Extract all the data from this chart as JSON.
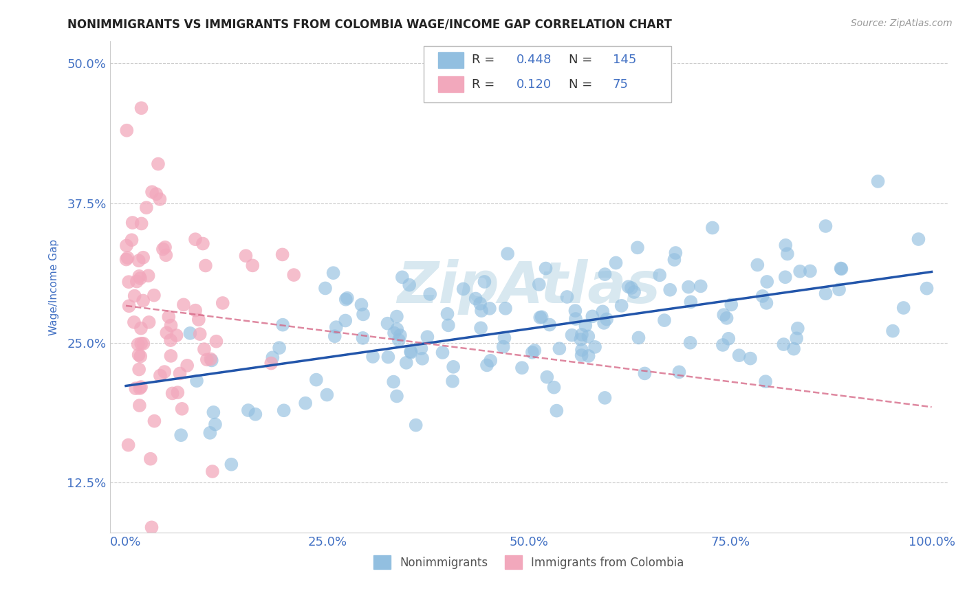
{
  "title": "NONIMMIGRANTS VS IMMIGRANTS FROM COLOMBIA WAGE/INCOME GAP CORRELATION CHART",
  "source_text": "Source: ZipAtlas.com",
  "ylabel": "Wage/Income Gap",
  "xlim": [
    -0.02,
    1.02
  ],
  "ylim": [
    0.08,
    0.52
  ],
  "xticks": [
    0.0,
    0.25,
    0.5,
    0.75,
    1.0
  ],
  "xticklabels": [
    "0.0%",
    "25.0%",
    "50.0%",
    "75.0%",
    "100.0%"
  ],
  "yticks": [
    0.125,
    0.25,
    0.375,
    0.5
  ],
  "yticklabels": [
    "12.5%",
    "25.0%",
    "37.5%",
    "50.0%"
  ],
  "blue_R": 0.448,
  "blue_N": 145,
  "pink_R": 0.12,
  "pink_N": 75,
  "blue_color": "#92BFE0",
  "pink_color": "#F2A8BC",
  "blue_line_color": "#2255AA",
  "pink_line_color": "#D46080",
  "watermark": "ZipAtlas",
  "watermark_color": "#D8E8F0",
  "background_color": "#FFFFFF",
  "title_color": "#222222",
  "tick_label_color": "#4472C4",
  "grid_color": "#CCCCCC",
  "title_fontsize": 12,
  "label_fontsize": 11,
  "legend_text_color": "#333333"
}
